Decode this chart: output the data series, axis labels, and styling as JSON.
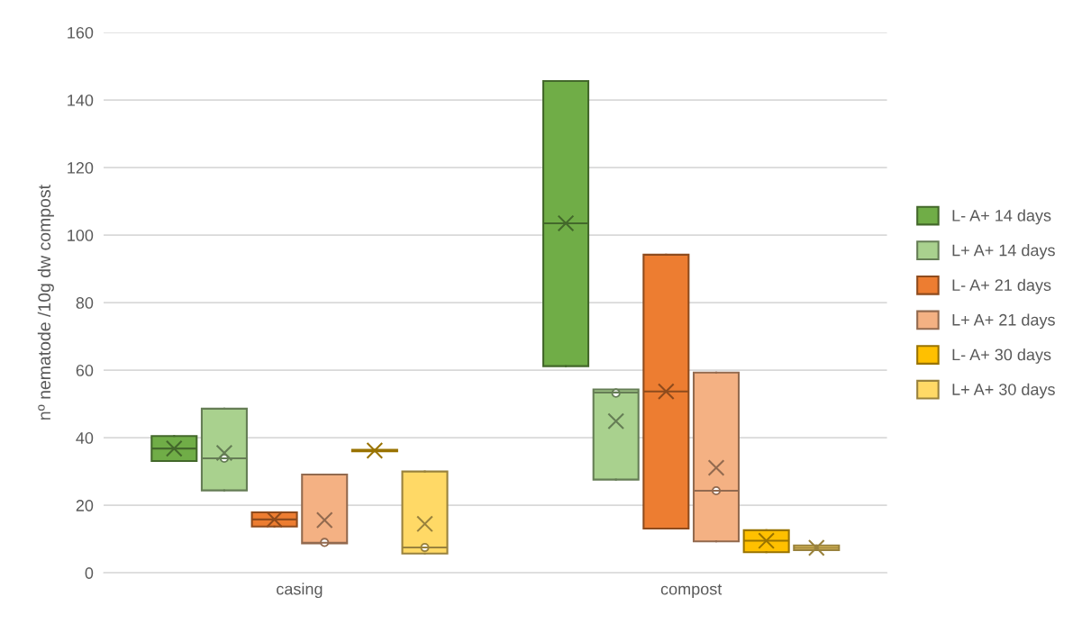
{
  "chart_data": {
    "type": "box",
    "ylabel": "nº nematode /10g dw compost",
    "categories": [
      "casing",
      "compost"
    ],
    "ylim": [
      0,
      160
    ],
    "yticks": [
      0,
      20,
      40,
      60,
      80,
      100,
      120,
      140,
      160
    ],
    "grid": "y",
    "legend": "right",
    "marker": "cross",
    "series": [
      {
        "name": "L- A+ 14 days",
        "color": "#70ad47",
        "boxes": [
          {
            "low": 33.1,
            "q1": 33.1,
            "median": 36.8,
            "q3": 40.5,
            "high": 40.5,
            "mean": 36.8
          },
          {
            "low": 61.2,
            "q1": 61.2,
            "median": 103.5,
            "q3": 145.6,
            "high": 145.6,
            "mean": 103.5
          }
        ]
      },
      {
        "name": "L+ A+ 14 days",
        "color": "#a9d18e",
        "boxes": [
          {
            "low": 24.4,
            "q1": 24.4,
            "median": 33.9,
            "q3": 48.6,
            "high": 48.6,
            "mean": 35.5,
            "outliers": [
              33.9
            ]
          },
          {
            "low": 27.6,
            "q1": 27.6,
            "median": 53.4,
            "q3": 54.3,
            "high": 54.3,
            "mean": 44.9,
            "outliers": [
              53.2
            ]
          }
        ]
      },
      {
        "name": "L- A+ 21 days",
        "color": "#ed7d31",
        "boxes": [
          {
            "low": 13.7,
            "q1": 13.7,
            "median": 15.8,
            "q3": 17.9,
            "high": 17.9,
            "mean": 15.8
          },
          {
            "low": 13.1,
            "q1": 13.1,
            "median": 53.7,
            "q3": 94.2,
            "high": 94.2,
            "mean": 53.7
          }
        ]
      },
      {
        "name": "L+ A+ 21 days",
        "color": "#f4b183",
        "boxes": [
          {
            "low": 8.7,
            "q1": 8.7,
            "median": 8.9,
            "q3": 29.1,
            "high": 29.1,
            "mean": 15.6,
            "outliers": [
              9.0
            ]
          },
          {
            "low": 9.3,
            "q1": 9.3,
            "median": 24.3,
            "q3": 59.3,
            "high": 59.3,
            "mean": 31.1,
            "outliers": [
              24.3
            ]
          }
        ]
      },
      {
        "name": "L- A+ 30 days",
        "color": "#ffc000",
        "boxes": [
          {
            "low": 36.0,
            "q1": 36.0,
            "median": 36.2,
            "q3": 36.4,
            "high": 36.4,
            "mean": 36.2
          },
          {
            "low": 6.1,
            "q1": 6.1,
            "median": 9.5,
            "q3": 12.6,
            "high": 12.6,
            "mean": 9.5
          }
        ]
      },
      {
        "name": "L+ A+ 30 days",
        "color": "#ffd966",
        "boxes": [
          {
            "low": 5.7,
            "q1": 5.7,
            "median": 7.5,
            "q3": 30.0,
            "high": 30.0,
            "mean": 14.5,
            "outliers": [
              7.5
            ]
          },
          {
            "low": 6.7,
            "q1": 6.7,
            "median": 7.4,
            "q3": 8.1,
            "high": 8.1,
            "mean": 7.4
          }
        ]
      }
    ]
  }
}
